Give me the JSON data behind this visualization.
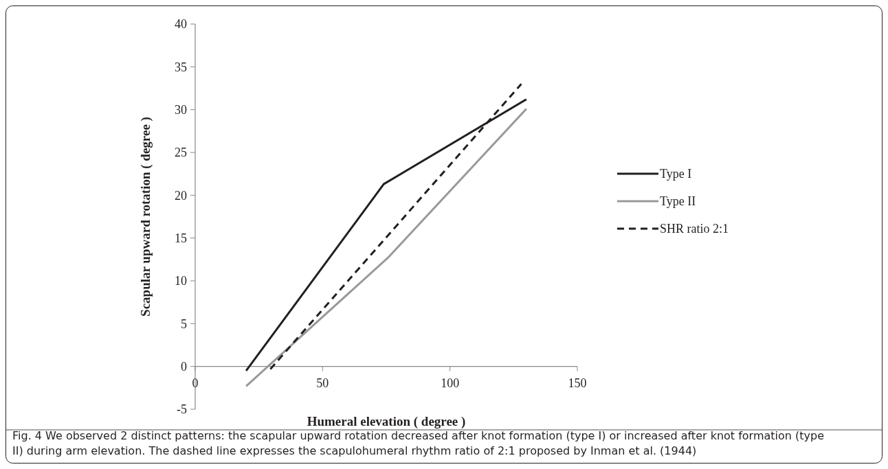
{
  "chart_data": {
    "type": "line",
    "xlabel": "Humeral elevation ( degree )",
    "ylabel": "Scapular upward rotation ( degree )",
    "xlim": [
      0,
      150
    ],
    "xticks": [
      0,
      50,
      100,
      150
    ],
    "ylim": [
      -5,
      40
    ],
    "yticks": [
      -5,
      0,
      5,
      10,
      15,
      20,
      25,
      30,
      35,
      40
    ],
    "series": [
      {
        "name": "Type I",
        "color": "#231f20",
        "x": [
          20,
          74,
          130
        ],
        "values": [
          -0.5,
          21.3,
          31.2
        ],
        "line_style": "solid"
      },
      {
        "name": "Type II",
        "color": "#999999",
        "x": [
          20,
          76,
          130
        ],
        "values": [
          -2.3,
          12.8,
          30.1
        ],
        "line_style": "solid"
      },
      {
        "name": "SHR ratio 2:1",
        "color": "#231f20",
        "x": [
          29.5,
          128
        ],
        "values": [
          -0.3,
          33
        ],
        "line_style": "dashed"
      }
    ],
    "legend": "right",
    "grid": false,
    "marker": "none",
    "annotations": [
      "Fig. 4 We observed 2 distinct patterns: the scapular upward rotation decreased after knot formation (type I) or increased after knot formation (type II) during arm elevation. The dashed line expresses the scapulohumeral rhythm ratio of 2:1 proposed by Inman et al. (1944)"
    ]
  }
}
